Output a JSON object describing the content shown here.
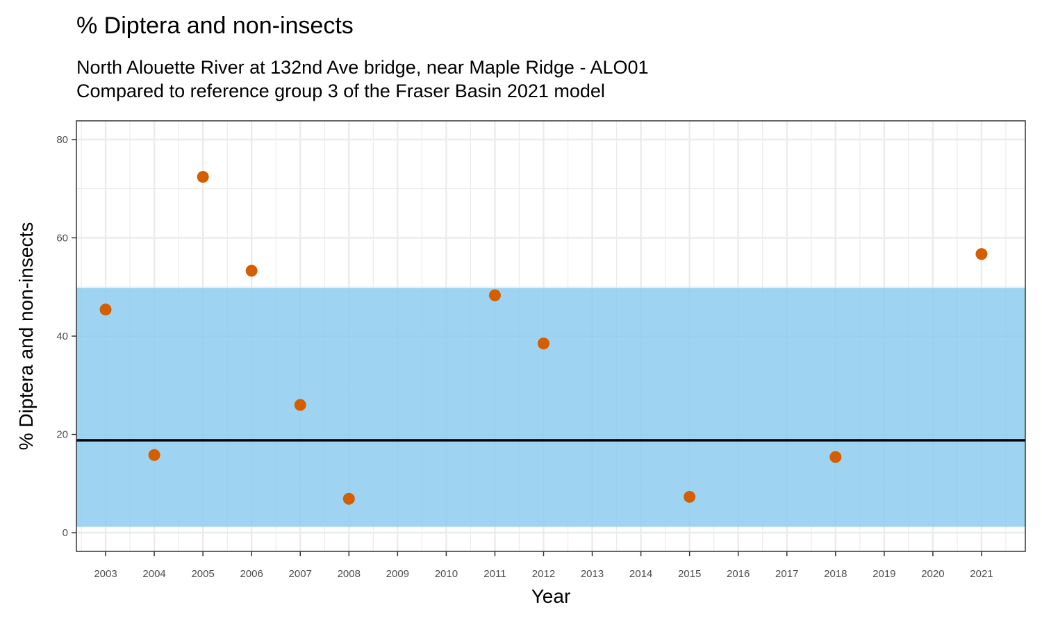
{
  "colors": {
    "reference_band": "#8DCDF0",
    "reference_line": "#000000",
    "points": "#D55E00",
    "grid": "#EBEBEB",
    "panel_border": "#333333"
  },
  "chart_data": {
    "type": "scatter",
    "title": "% Diptera and non-insects",
    "subtitle_lines": [
      "North Alouette River at 132nd Ave bridge, near Maple Ridge - ALO01",
      "Compared to reference group 3 of the Fraser Basin 2021 model"
    ],
    "xlabel": "Year",
    "ylabel": "% Diptera and non-insects",
    "x_ticks": [
      2003,
      2004,
      2005,
      2006,
      2007,
      2008,
      2009,
      2010,
      2011,
      2012,
      2013,
      2014,
      2015,
      2016,
      2017,
      2018,
      2019,
      2020,
      2021
    ],
    "y_ticks": [
      0,
      20,
      40,
      60,
      80
    ],
    "xlim": [
      2002.4,
      2021.9
    ],
    "ylim": [
      -3.8,
      83.8
    ],
    "grid": true,
    "reference_band": {
      "low": 1.2,
      "high": 49.8
    },
    "reference_line": 18.8,
    "series": [
      {
        "x": [
          2003,
          2004,
          2005,
          2006,
          2007,
          2008,
          2011,
          2012,
          2015,
          2018,
          2021
        ],
        "y": [
          45.4,
          15.8,
          72.4,
          53.3,
          26.0,
          6.9,
          48.3,
          38.5,
          7.3,
          15.4,
          56.7
        ]
      }
    ]
  }
}
